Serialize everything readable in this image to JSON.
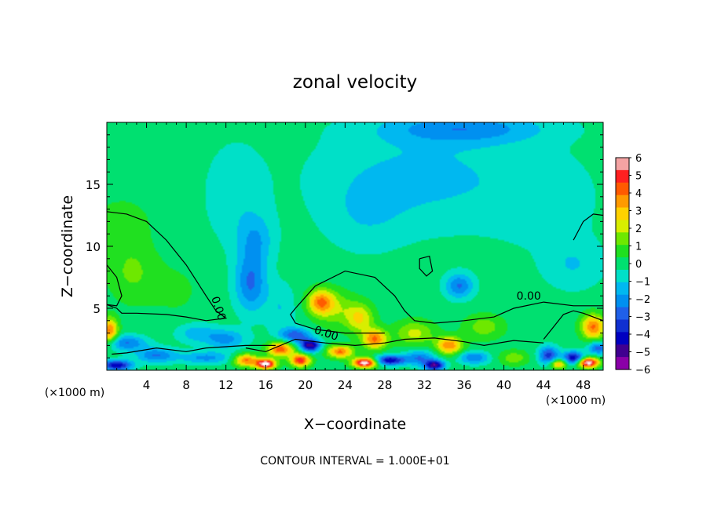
{
  "chart_data": {
    "type": "heatmap",
    "title": "zonal velocity",
    "xlabel": "X−coordinate",
    "ylabel": "Z−coordinate",
    "x_scale_note": "(×1000 m)",
    "x_scale_note_right": "(×1000 m)",
    "footer": "CONTOUR INTERVAL = 1.000E+01",
    "xlim": [
      0,
      50
    ],
    "ylim": [
      0,
      20
    ],
    "x_ticks": [
      4,
      8,
      12,
      16,
      20,
      24,
      28,
      32,
      36,
      40,
      44,
      48
    ],
    "y_ticks": [
      5,
      10,
      15
    ],
    "colorbar": {
      "range": [
        -6,
        6
      ],
      "labels": [
        "6",
        "5",
        "4",
        "3",
        "2",
        "1",
        "0",
        "−1",
        "−2",
        "−3",
        "−4",
        "−5",
        "−6"
      ],
      "colors": [
        "#f4a3a3",
        "#ff2020",
        "#ff5a00",
        "#ff9a00",
        "#ffd200",
        "#d8ee00",
        "#6ee800",
        "#20e020",
        "#00e070",
        "#00e0c8",
        "#00b8f0",
        "#0090f0",
        "#2060e8",
        "#1030d0",
        "#0000c0",
        "#400090",
        "#8a00a8"
      ]
    },
    "contour_labels": [
      "0.00",
      "0.00",
      "0.00"
    ],
    "regions": [
      {
        "x": 2.5,
        "y": 8.0,
        "sx": 2.5,
        "sy": 2.5,
        "value": 1.2
      },
      {
        "x": 1.5,
        "y": 12.0,
        "sx": 3.0,
        "sy": 2.0,
        "value": 0.8
      },
      {
        "x": 7.0,
        "y": 6.5,
        "sx": 3.0,
        "sy": 2.5,
        "value": 0.5
      },
      {
        "x": 14.5,
        "y": 7.0,
        "sx": 1.6,
        "sy": 2.3,
        "value": -2.5
      },
      {
        "x": 15.0,
        "y": 10.5,
        "sx": 1.8,
        "sy": 2.0,
        "value": -1.5
      },
      {
        "x": 13.0,
        "y": 14.0,
        "sx": 3.0,
        "sy": 4.0,
        "value": -0.8
      },
      {
        "x": 17.5,
        "y": 5.0,
        "sx": 1.5,
        "sy": 2.0,
        "value": -1.0
      },
      {
        "x": 35.5,
        "y": 6.8,
        "sx": 1.4,
        "sy": 1.0,
        "value": -2.5
      },
      {
        "x": 32.0,
        "y": 15.5,
        "sx": 10.0,
        "sy": 4.0,
        "value": -1.2
      },
      {
        "x": 36.0,
        "y": 19.5,
        "sx": 8.0,
        "sy": 1.2,
        "value": -2.0
      },
      {
        "x": 44.0,
        "y": 13.5,
        "sx": 5.0,
        "sy": 3.5,
        "value": -0.7
      },
      {
        "x": 47.0,
        "y": 8.5,
        "sx": 3.0,
        "sy": 2.0,
        "value": -1.0
      },
      {
        "x": 26.0,
        "y": 12.5,
        "sx": 4.0,
        "sy": 3.0,
        "value": -0.7
      },
      {
        "x": 21.5,
        "y": 5.5,
        "sx": 1.3,
        "sy": 1.0,
        "value": 3.5
      },
      {
        "x": 25.5,
        "y": 4.2,
        "sx": 1.4,
        "sy": 1.2,
        "value": 2.5
      },
      {
        "x": 23.0,
        "y": 5.0,
        "sx": 2.0,
        "sy": 1.5,
        "value": 1.5
      },
      {
        "x": 27.0,
        "y": 2.5,
        "sx": 1.2,
        "sy": 0.8,
        "value": 4.0
      },
      {
        "x": 34.5,
        "y": 2.0,
        "sx": 1.3,
        "sy": 0.7,
        "value": 3.8
      },
      {
        "x": 31.0,
        "y": 3.0,
        "sx": 2.0,
        "sy": 1.0,
        "value": 2.0
      },
      {
        "x": 38.0,
        "y": 3.5,
        "sx": 2.0,
        "sy": 1.0,
        "value": 1.5
      },
      {
        "x": 49.0,
        "y": 3.5,
        "sx": 1.2,
        "sy": 1.0,
        "value": 4.0
      },
      {
        "x": 0.3,
        "y": 3.2,
        "sx": 0.8,
        "sy": 1.0,
        "value": 4.0
      },
      {
        "x": 2.0,
        "y": 2.2,
        "sx": 2.0,
        "sy": 0.6,
        "value": -2.5
      },
      {
        "x": 5.0,
        "y": 1.2,
        "sx": 2.0,
        "sy": 0.6,
        "value": -2.5
      },
      {
        "x": 10.0,
        "y": 1.0,
        "sx": 2.5,
        "sy": 0.5,
        "value": -2.0
      },
      {
        "x": 1.0,
        "y": 0.4,
        "sx": 1.5,
        "sy": 0.4,
        "value": -4.5
      },
      {
        "x": 14.0,
        "y": 0.8,
        "sx": 1.2,
        "sy": 0.5,
        "value": 4.0
      },
      {
        "x": 17.5,
        "y": 1.7,
        "sx": 1.3,
        "sy": 0.6,
        "value": 4.5
      },
      {
        "x": 16.0,
        "y": 0.5,
        "sx": 1.0,
        "sy": 0.4,
        "value": 6.5
      },
      {
        "x": 19.5,
        "y": 0.8,
        "sx": 1.0,
        "sy": 0.5,
        "value": 5.0
      },
      {
        "x": 20.5,
        "y": 2.0,
        "sx": 1.0,
        "sy": 0.5,
        "value": -5.0
      },
      {
        "x": 19.0,
        "y": 2.8,
        "sx": 1.5,
        "sy": 0.6,
        "value": -3.0
      },
      {
        "x": 23.5,
        "y": 1.5,
        "sx": 1.3,
        "sy": 0.5,
        "value": 4.0
      },
      {
        "x": 26.0,
        "y": 0.6,
        "sx": 1.2,
        "sy": 0.4,
        "value": 6.5
      },
      {
        "x": 28.5,
        "y": 0.8,
        "sx": 1.5,
        "sy": 0.4,
        "value": -4.5
      },
      {
        "x": 31.5,
        "y": 1.0,
        "sx": 1.5,
        "sy": 0.6,
        "value": -2.5
      },
      {
        "x": 33.0,
        "y": 0.4,
        "sx": 1.0,
        "sy": 0.4,
        "value": -5.0
      },
      {
        "x": 37.0,
        "y": 1.0,
        "sx": 1.5,
        "sy": 0.5,
        "value": -2.5
      },
      {
        "x": 41.0,
        "y": 1.0,
        "sx": 1.5,
        "sy": 0.6,
        "value": 1.5
      },
      {
        "x": 44.5,
        "y": 1.2,
        "sx": 1.0,
        "sy": 0.7,
        "value": -3.5
      },
      {
        "x": 45.5,
        "y": 0.5,
        "sx": 0.8,
        "sy": 0.4,
        "value": 3.5
      },
      {
        "x": 48.5,
        "y": 0.6,
        "sx": 1.0,
        "sy": 0.4,
        "value": 6.5
      },
      {
        "x": 47.0,
        "y": 1.0,
        "sx": 1.0,
        "sy": 0.5,
        "value": -4.5
      },
      {
        "x": 49.5,
        "y": 1.8,
        "sx": 1.0,
        "sy": 0.5,
        "value": -3.0
      },
      {
        "x": 12.0,
        "y": 2.5,
        "sx": 2.0,
        "sy": 0.8,
        "value": -2.0
      },
      {
        "x": 9.0,
        "y": 3.0,
        "sx": 2.0,
        "sy": 0.8,
        "value": -1.5
      }
    ],
    "contours": [
      [
        [
          0,
          12.8
        ],
        [
          2,
          12.6
        ],
        [
          4,
          12.0
        ],
        [
          6,
          10.5
        ],
        [
          8,
          8.5
        ],
        [
          10,
          6.0
        ],
        [
          11,
          4.8
        ],
        [
          12,
          4.2
        ],
        [
          10,
          4.0
        ],
        [
          8,
          4.3
        ],
        [
          6,
          4.5
        ],
        [
          3,
          4.6
        ],
        [
          1.5,
          4.6
        ],
        [
          1.0,
          5.0
        ],
        [
          0,
          5.3
        ]
      ],
      [
        [
          0,
          8.5
        ],
        [
          1,
          7.5
        ],
        [
          1.5,
          6.0
        ],
        [
          1.0,
          5.2
        ],
        [
          0,
          5.3
        ]
      ],
      [
        [
          19,
          5.0
        ],
        [
          21,
          6.8
        ],
        [
          24,
          8.0
        ],
        [
          27,
          7.5
        ],
        [
          29,
          6.0
        ],
        [
          30,
          4.8
        ],
        [
          31,
          4.0
        ],
        [
          33,
          3.8
        ],
        [
          36,
          4.0
        ],
        [
          39,
          4.3
        ],
        [
          41,
          5.0
        ],
        [
          44,
          5.5
        ],
        [
          47,
          5.2
        ],
        [
          50,
          5.2
        ]
      ],
      [
        [
          19,
          5.0
        ],
        [
          18.5,
          4.5
        ],
        [
          19,
          3.8
        ],
        [
          21,
          3.3
        ],
        [
          24,
          3.0
        ],
        [
          28,
          3.0
        ]
      ],
      [
        [
          31.5,
          9.0
        ],
        [
          32.5,
          9.2
        ],
        [
          32.8,
          8.0
        ],
        [
          32.2,
          7.6
        ],
        [
          31.5,
          8.2
        ],
        [
          31.5,
          9.0
        ]
      ],
      [
        [
          44,
          2.5
        ],
        [
          45,
          3.5
        ],
        [
          46,
          4.5
        ],
        [
          47,
          4.8
        ],
        [
          48,
          4.6
        ],
        [
          50,
          4.0
        ]
      ],
      [
        [
          47,
          10.5
        ],
        [
          48,
          12.0
        ],
        [
          49,
          12.6
        ],
        [
          50,
          12.5
        ]
      ],
      [
        [
          0.5,
          1.3
        ],
        [
          2,
          1.4
        ],
        [
          5,
          1.8
        ],
        [
          8,
          1.5
        ],
        [
          10,
          1.8
        ],
        [
          12,
          1.9
        ],
        [
          14,
          2.0
        ],
        [
          17,
          2.0
        ]
      ],
      [
        [
          14,
          1.8
        ],
        [
          16,
          1.5
        ],
        [
          19,
          2.5
        ],
        [
          22,
          2.2
        ],
        [
          25,
          2.0
        ],
        [
          28,
          2.2
        ],
        [
          30,
          2.5
        ],
        [
          33,
          2.6
        ],
        [
          36,
          2.3
        ],
        [
          38,
          2.0
        ],
        [
          41,
          2.4
        ],
        [
          44,
          2.2
        ]
      ]
    ]
  }
}
